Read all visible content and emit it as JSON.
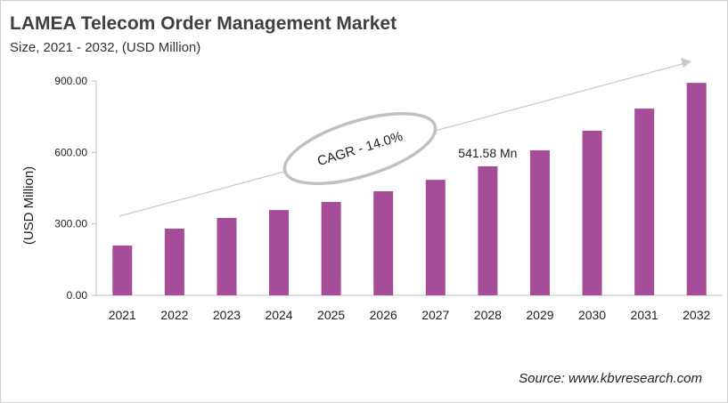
{
  "title": "LAMEA Telecom Order Management Market",
  "subtitle": "Size, 2021 - 2032, (USD Million)",
  "source": "Source: www.kbvresearch.com",
  "colors": {
    "bar": "#a64d9a",
    "text": "#404040"
  },
  "chart_data": {
    "type": "bar",
    "title": "LAMEA Telecom Order Management Market",
    "ylabel": "(USD Million)",
    "xlabel": "",
    "ylim": [
      0,
      900
    ],
    "yticks": [
      "0.00",
      "300.00",
      "600.00",
      "900.00"
    ],
    "categories": [
      "2021",
      "2022",
      "2023",
      "2024",
      "2025",
      "2026",
      "2027",
      "2028",
      "2029",
      "2030",
      "2031",
      "2032"
    ],
    "values": [
      209,
      280,
      325,
      358,
      392,
      437,
      485,
      541.58,
      609,
      691,
      784,
      892
    ],
    "annotations": {
      "bar_label": "541.58 Mn",
      "bar_label_category": "2028",
      "cagr": "CAGR - 14.0%"
    },
    "grid": false,
    "legend": "none"
  }
}
